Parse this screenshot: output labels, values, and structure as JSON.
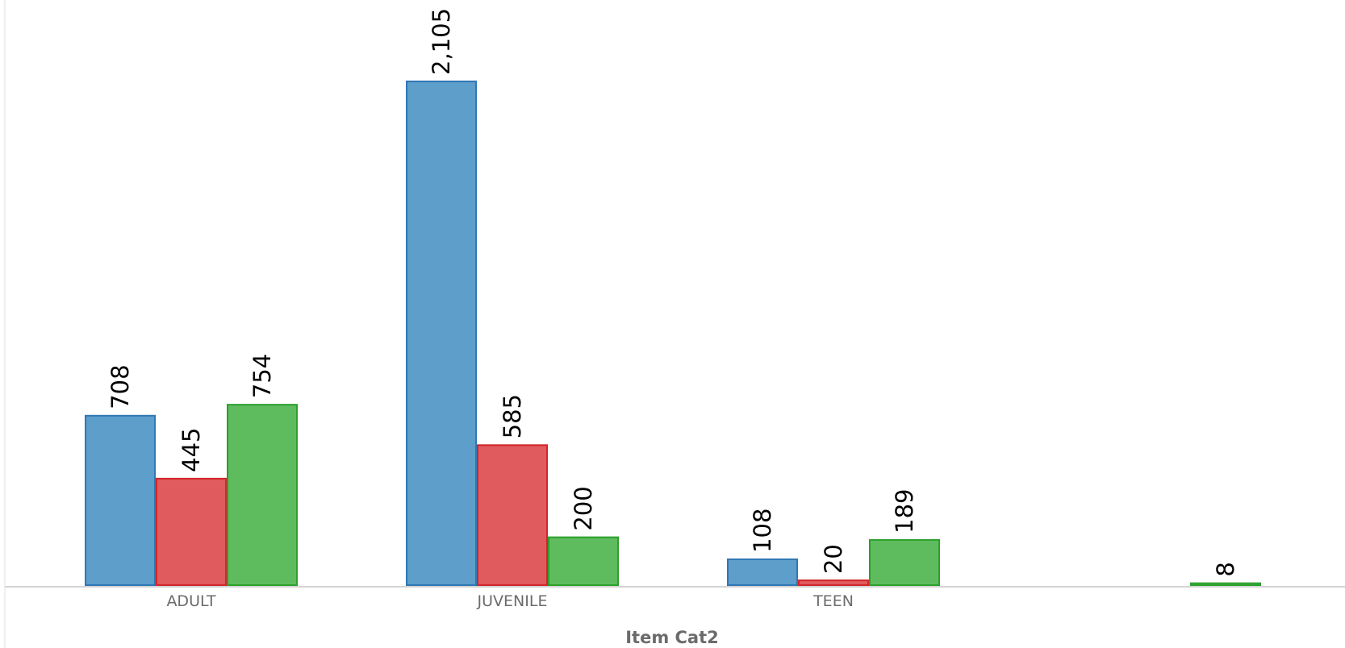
{
  "chart_data": {
    "type": "bar",
    "categories": [
      "ADULT",
      "JUVENILE",
      "TEEN",
      ""
    ],
    "series": [
      {
        "values": [
          708,
          2105,
          108,
          null
        ],
        "color": "#5e9ecb",
        "stroke": "#2f77b4"
      },
      {
        "values": [
          445,
          585,
          20,
          null
        ],
        "color": "#e05b5d",
        "stroke": "#d1262a"
      },
      {
        "values": [
          754,
          200,
          189,
          8
        ],
        "color": "#5ebc5e",
        "stroke": "#2ca02c"
      }
    ],
    "data_labels": [
      [
        "708",
        "2,105",
        "108",
        ""
      ],
      [
        "445",
        "585",
        "20",
        ""
      ],
      [
        "754",
        "200",
        "189",
        "8"
      ]
    ],
    "xlabel": "Item Cat2",
    "ylabel": "",
    "ylim": [
      0,
      2200
    ],
    "grid": false,
    "legend": "none"
  }
}
